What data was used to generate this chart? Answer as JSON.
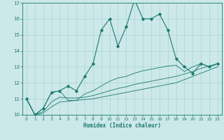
{
  "xlabel": "Humidex (Indice chaleur)",
  "x_values": [
    0,
    1,
    2,
    3,
    4,
    5,
    6,
    7,
    8,
    9,
    10,
    11,
    12,
    13,
    14,
    15,
    16,
    17,
    18,
    19,
    20,
    21,
    22,
    23
  ],
  "main_line": [
    11,
    10,
    10.4,
    11.4,
    11.5,
    11.8,
    11.5,
    12.4,
    13.2,
    15.3,
    16.0,
    14.3,
    15.5,
    17.2,
    16.0,
    16.0,
    16.3,
    15.3,
    13.5,
    13.0,
    12.6,
    13.2,
    13.0,
    13.2
  ],
  "line2": [
    11,
    10,
    10.4,
    11.4,
    11.5,
    10.9,
    10.9,
    11.3,
    11.5,
    11.8,
    12.1,
    12.3,
    12.4,
    12.6,
    12.75,
    12.85,
    12.95,
    13.05,
    13.1,
    12.7,
    13.0,
    13.2,
    13.0,
    13.2
  ],
  "line3": [
    11,
    10,
    10.2,
    10.8,
    11.1,
    11.05,
    11.05,
    11.1,
    11.2,
    11.35,
    11.5,
    11.65,
    11.75,
    11.9,
    12.0,
    12.1,
    12.2,
    12.3,
    12.4,
    12.55,
    12.7,
    12.9,
    13.05,
    13.2
  ],
  "line4": [
    11,
    10,
    10.1,
    10.5,
    10.8,
    10.85,
    10.9,
    10.95,
    11.0,
    11.1,
    11.2,
    11.3,
    11.4,
    11.5,
    11.6,
    11.7,
    11.8,
    11.9,
    12.0,
    12.2,
    12.4,
    12.6,
    12.8,
    13.0
  ],
  "line_color": "#1a7a6e",
  "bg_color": "#cce8e8",
  "grid_color": "#aad4d4",
  "ylim": [
    10,
    17
  ],
  "yticks": [
    10,
    11,
    12,
    13,
    14,
    15,
    16,
    17
  ],
  "xticks": [
    0,
    1,
    2,
    3,
    4,
    5,
    6,
    7,
    8,
    9,
    10,
    11,
    12,
    13,
    14,
    15,
    16,
    17,
    18,
    19,
    20,
    21,
    22,
    23
  ]
}
